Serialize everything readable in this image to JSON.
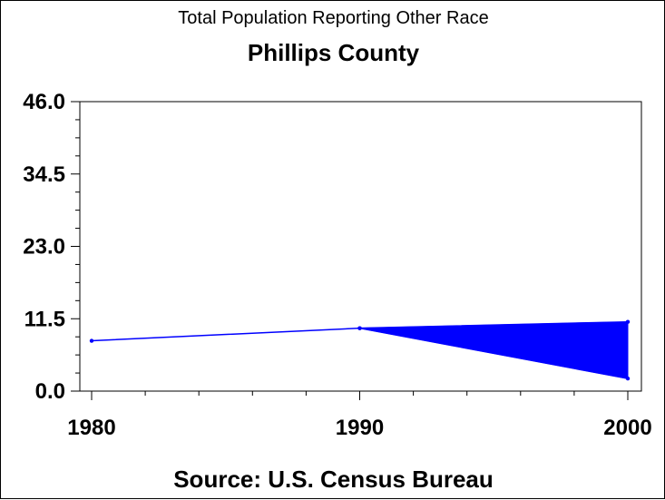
{
  "chart_data": {
    "type": "area",
    "title": "Total Population Reporting Other Race",
    "subtitle": "Phillips County",
    "source": "Source: U.S. Census Bureau",
    "xlabel": "",
    "ylabel": "",
    "x_ticks": [
      "1980",
      "1990",
      "2000"
    ],
    "y_ticks": [
      "0.0",
      "11.5",
      "23.0",
      "34.5",
      "46.0"
    ],
    "xlim": [
      1980,
      2000
    ],
    "ylim": [
      0,
      46
    ],
    "series": [
      {
        "x": [
          1980,
          1990,
          2000
        ],
        "values": [
          8.0,
          10.0,
          11.0
        ]
      },
      {
        "x": [
          1990,
          2000
        ],
        "values": [
          10.0,
          2.0
        ]
      }
    ],
    "fill_between_1990_2000": {
      "upper": 11.0,
      "lower": 2.0
    },
    "color": "#0000ff",
    "grid": false
  }
}
